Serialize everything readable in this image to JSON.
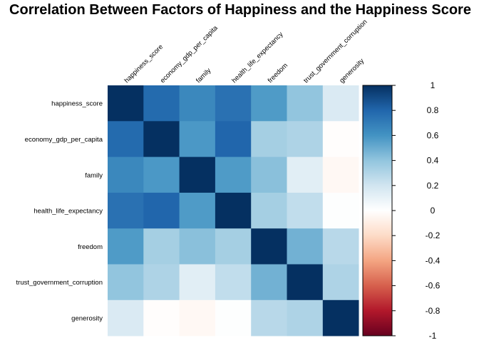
{
  "chart_data": {
    "type": "heatmap",
    "title": "Correlation Between Factors of Happiness and the Happiness Score",
    "variables": [
      "happiness_score",
      "economy_gdp_per_capita",
      "family",
      "health_life_expectancy",
      "freedom",
      "trust_government_corruption",
      "generosity"
    ],
    "matrix": [
      [
        1.0,
        0.78,
        0.65,
        0.75,
        0.57,
        0.4,
        0.16
      ],
      [
        0.78,
        1.0,
        0.58,
        0.8,
        0.34,
        0.31,
        -0.01
      ],
      [
        0.65,
        0.58,
        1.0,
        0.57,
        0.42,
        0.13,
        -0.04
      ],
      [
        0.75,
        0.8,
        0.57,
        1.0,
        0.34,
        0.25,
        0.01
      ],
      [
        0.57,
        0.34,
        0.42,
        0.34,
        1.0,
        0.48,
        0.28
      ],
      [
        0.4,
        0.31,
        0.13,
        0.25,
        0.48,
        1.0,
        0.31
      ],
      [
        0.16,
        -0.01,
        -0.04,
        0.01,
        0.28,
        0.31,
        1.0
      ]
    ],
    "color_scale": {
      "min": -1,
      "max": 1,
      "stops": [
        {
          "value": -1.0,
          "color": "#67001F"
        },
        {
          "value": -0.8,
          "color": "#B2182B"
        },
        {
          "value": -0.6,
          "color": "#D6604D"
        },
        {
          "value": -0.4,
          "color": "#F4A582"
        },
        {
          "value": -0.2,
          "color": "#FDDBC7"
        },
        {
          "value": 0.0,
          "color": "#FFFFFF"
        },
        {
          "value": 0.2,
          "color": "#D1E5F0"
        },
        {
          "value": 0.4,
          "color": "#92C5DE"
        },
        {
          "value": 0.6,
          "color": "#4393C3"
        },
        {
          "value": 0.8,
          "color": "#2166AC"
        },
        {
          "value": 1.0,
          "color": "#053061"
        }
      ]
    },
    "legend_ticks": [
      "1",
      "0.8",
      "0.6",
      "0.4",
      "0.2",
      "0",
      "-0.2",
      "-0.4",
      "-0.6",
      "-0.8",
      "-1"
    ],
    "legend_tick_values": [
      1,
      0.8,
      0.6,
      0.4,
      0.2,
      0,
      -0.2,
      -0.4,
      -0.6,
      -0.8,
      -1
    ],
    "legend_placement": "right",
    "grid": false
  }
}
